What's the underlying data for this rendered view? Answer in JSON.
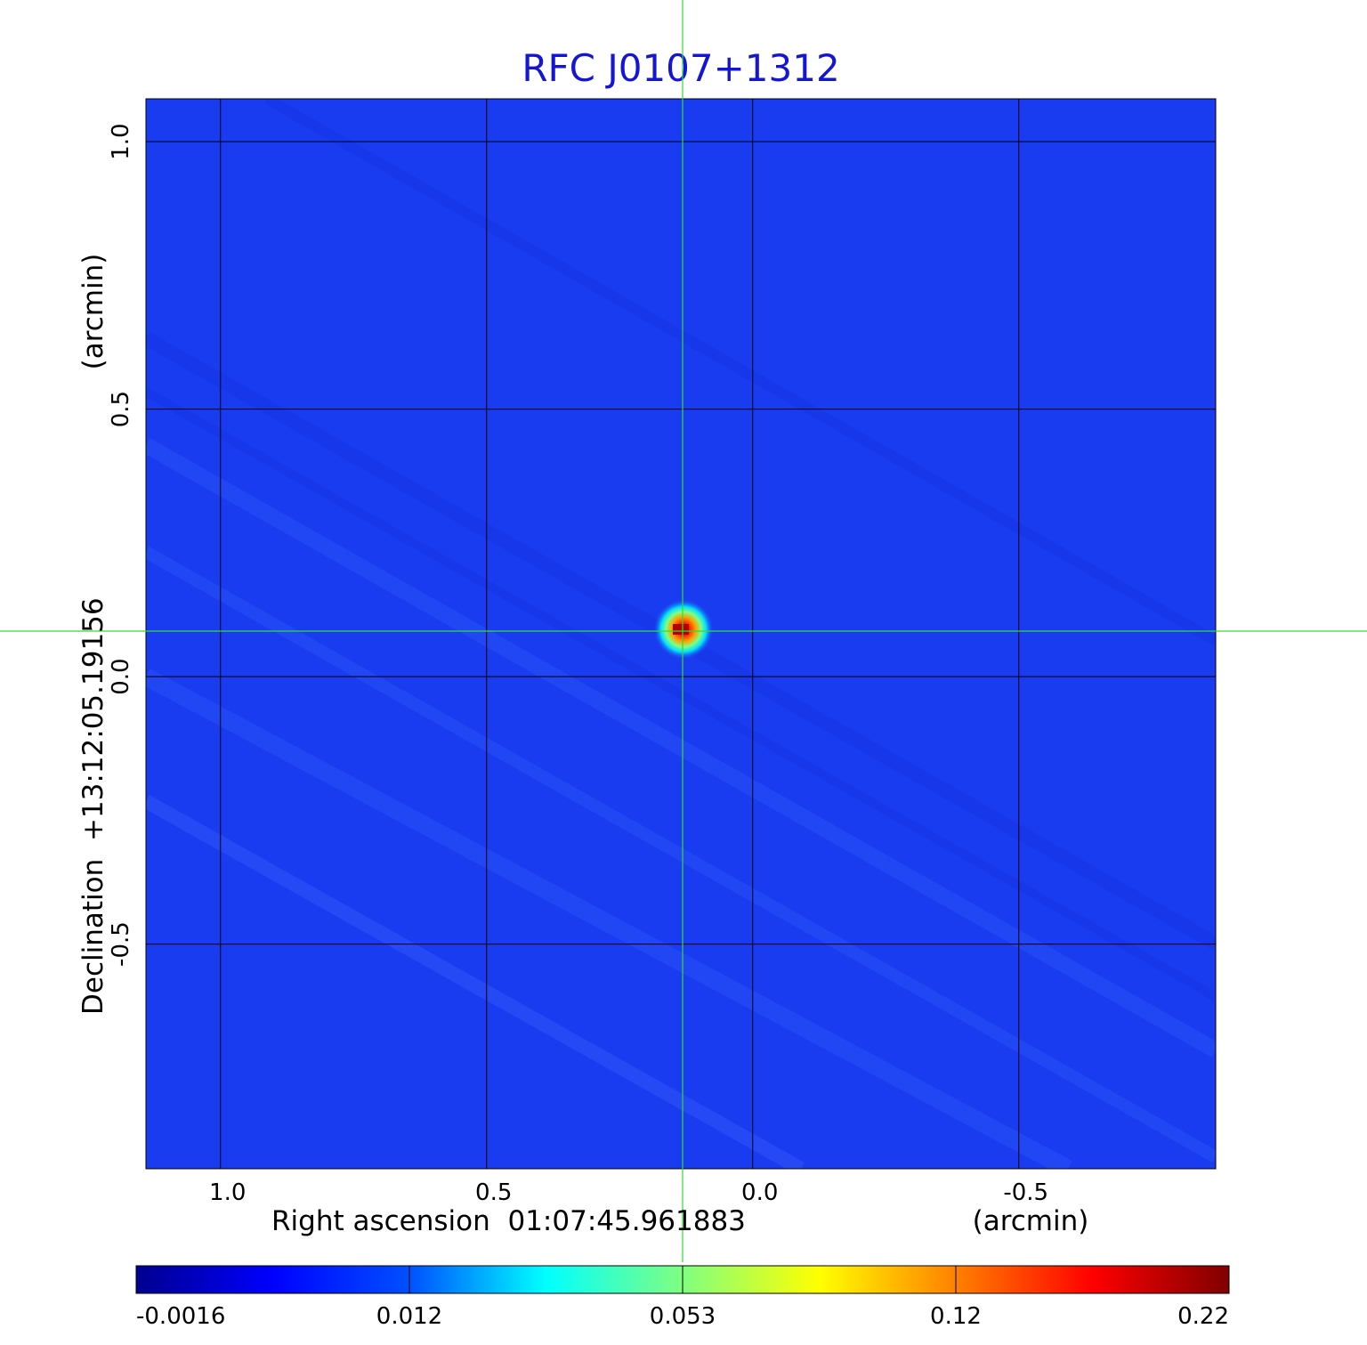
{
  "chart_data": {
    "type": "heatmap",
    "title": "RFC J0107+1312",
    "xlabel": "Right ascension  01:07:45.961883",
    "xunit": "(arcmin)",
    "ylabel": "Declination  +13:12:05.19156",
    "yunit": "(arcmin)",
    "xlim": [
      1.14,
      -0.87
    ],
    "ylim": [
      -0.92,
      1.08
    ],
    "x_ticks": [
      1.0,
      0.5,
      0.0,
      -0.5
    ],
    "x_tick_labels": [
      "1.0",
      "0.5",
      "0.0",
      "-0.5"
    ],
    "y_ticks": [
      1.0,
      0.5,
      0.0,
      -0.5
    ],
    "y_tick_labels": [
      "1.0",
      "0.5",
      "0.0",
      "-0.5"
    ],
    "grid": true,
    "source_peak": {
      "x": 0.13,
      "y": 0.09,
      "value": 0.22
    },
    "colorbar": {
      "colormap": "jet",
      "scale": "nonlinear",
      "tick_labels": [
        "-0.0016",
        "0.012",
        "0.053",
        "0.12",
        "0.22"
      ],
      "tick_values": [
        -0.0016,
        0.012,
        0.053,
        0.12,
        0.22
      ]
    }
  },
  "colors": {
    "title": "#1515d4",
    "background_map": "#1a3cf0",
    "crosshair": "#33dd33",
    "grid": "#000000"
  }
}
